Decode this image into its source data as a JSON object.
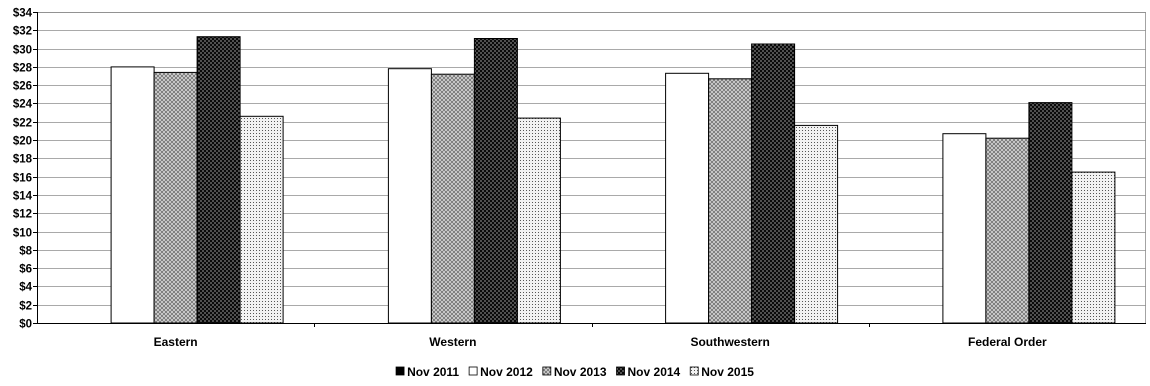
{
  "chart_data": {
    "type": "bar",
    "title": "",
    "xlabel": "",
    "ylabel": "",
    "categories": [
      "Eastern",
      "Western",
      "Southwestern",
      "Federal Order"
    ],
    "series": [
      {
        "name": "Nov 2011",
        "values": [
          null,
          null,
          null,
          null
        ],
        "pattern": "solid-black"
      },
      {
        "name": "Nov 2012",
        "values": [
          28.0,
          27.8,
          27.3,
          20.7
        ],
        "pattern": "white"
      },
      {
        "name": "Nov 2013",
        "values": [
          27.4,
          27.2,
          26.7,
          20.2
        ],
        "pattern": "crosshatch-gray"
      },
      {
        "name": "Nov 2014",
        "values": [
          31.3,
          31.1,
          30.5,
          24.1
        ],
        "pattern": "black-dots"
      },
      {
        "name": "Nov 2015",
        "values": [
          22.6,
          22.4,
          21.6,
          16.5
        ],
        "pattern": "light-dots"
      }
    ],
    "ylim": [
      0,
      34
    ],
    "ytick_step": 2,
    "ytick_format": "${v}",
    "grid": true,
    "legend_position": "bottom"
  }
}
